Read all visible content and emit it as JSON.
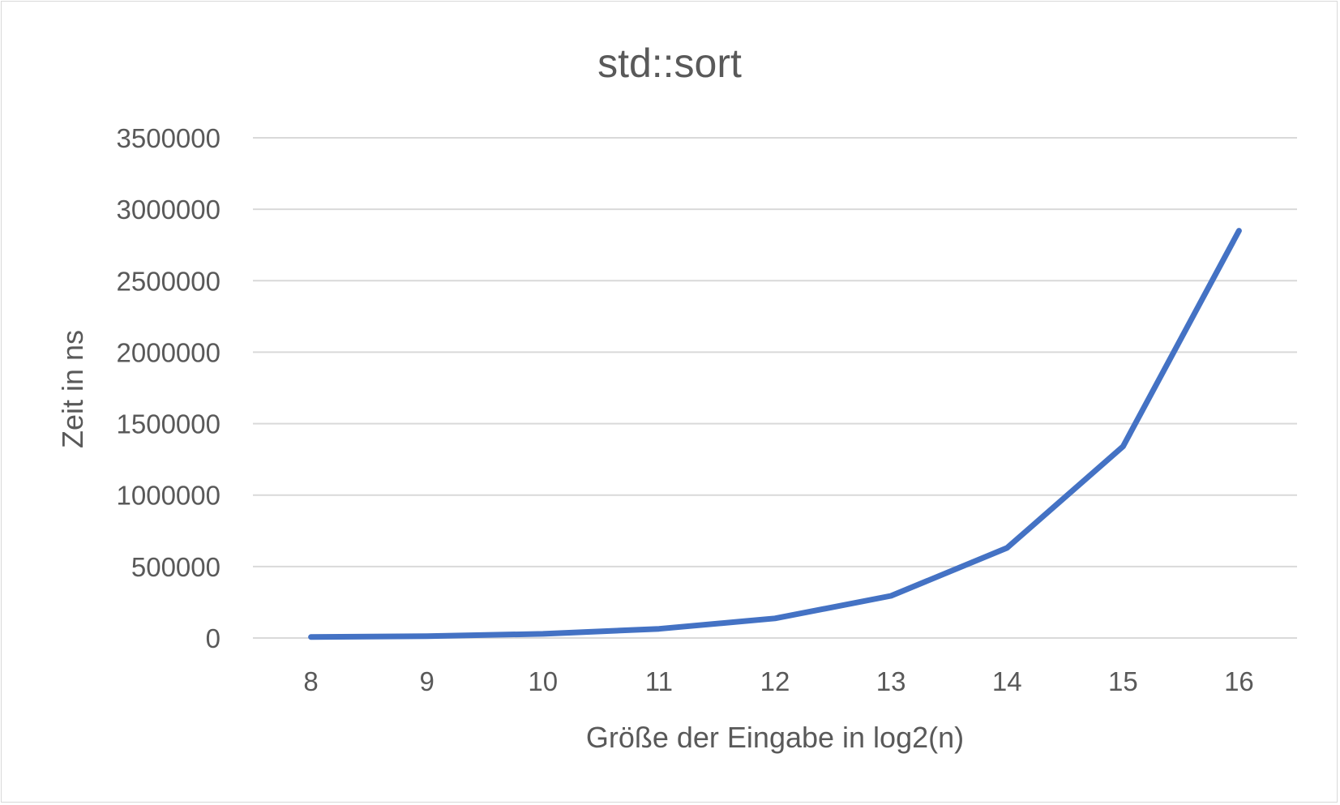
{
  "chart_data": {
    "type": "line",
    "title": "std::sort",
    "xlabel": "Größe der Eingabe in log2(n)",
    "ylabel": "Zeit in ns",
    "categories": [
      "8",
      "9",
      "10",
      "11",
      "12",
      "13",
      "14",
      "15",
      "16"
    ],
    "series": [
      {
        "values": [
          7000,
          13000,
          29000,
          64000,
          137000,
          295000,
          630000,
          1340000,
          2850000
        ],
        "color": "#4472c4"
      }
    ],
    "ylim": [
      0,
      3500000
    ],
    "yticks": [
      "0",
      "500000",
      "1000000",
      "1500000",
      "2000000",
      "2500000",
      "3000000",
      "3500000"
    ],
    "grid": true,
    "legend": "none"
  }
}
